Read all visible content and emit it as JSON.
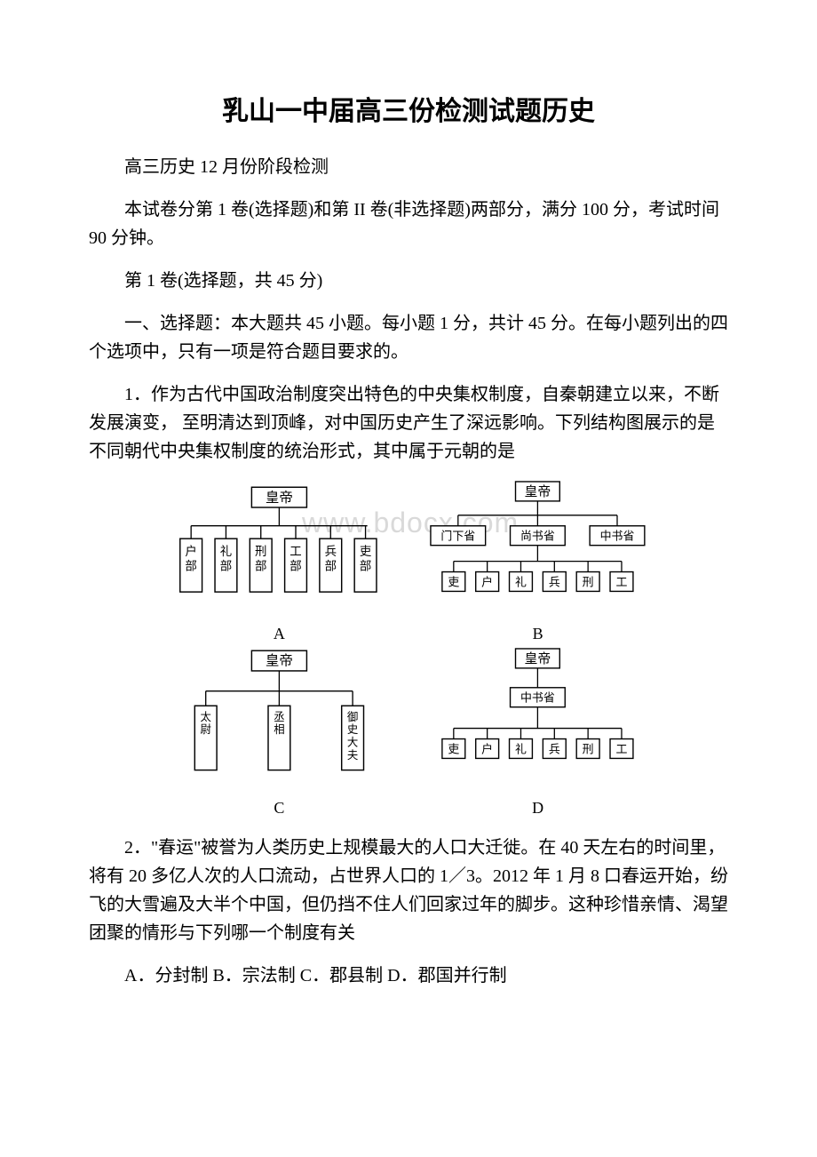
{
  "title": "乳山一中届高三份检测试题历史",
  "p1": "高三历史 12 月份阶段检测",
  "p2": "本试卷分第 1 卷(选择题)和第 II 卷(非选择题)两部分，满分 100 分，考试时间 90 分钟。",
  "p3": "第 1 卷(选择题，共 45 分)",
  "p4": "一、选择题：本大题共 45 小题。每小题 1 分，共计 45 分。在每小题列出的四个选项中，只有一项是符合题目要求的。",
  "q1": "1．作为古代中国政治制度突出特色的中央集权制度，自秦朝建立以来，不断发展演变， 至明清达到顶峰，对中国历史产生了深远影响。下列结构图展示的是不同朝代中央集权制度的统治形式，其中属于元朝的是",
  "watermark": "www.bdocx.com",
  "diagrams": {
    "A": {
      "top": "皇帝",
      "boxes": [
        "户部",
        "礼部",
        "刑部",
        "工部",
        "兵部",
        "吏部"
      ],
      "caption": "A"
    },
    "B": {
      "top": "皇帝",
      "row1": [
        "门下省",
        "尚书省",
        "中书省"
      ],
      "row2": [
        "吏",
        "户",
        "礼",
        "兵",
        "刑",
        "工"
      ],
      "caption": "B"
    },
    "C": {
      "top": "皇帝",
      "boxes": [
        "太尉",
        "丞相",
        "御史大夫"
      ],
      "caption": "C"
    },
    "D": {
      "top": "皇帝",
      "mid": "中书省",
      "row2": [
        "吏",
        "户",
        "礼",
        "兵",
        "刑",
        "工"
      ],
      "caption": "D"
    }
  },
  "q2": "2．\"春运\"被誉为人类历史上规模最大的人口大迁徙。在 40 天左右的时间里，将有 20 多亿人次的人口流动，占世界人口的 1／3。2012 年 1 月 8 口春运开始，纷飞的大雪遍及大半个中国，但仍挡不住人们回家过年的脚步。这种珍惜亲情、渴望团聚的情形与下列哪一个制度有关",
  "q2_options": "A．分封制 B．宗法制 C．郡县制 D．郡国并行制",
  "style": {
    "title_fontsize": 30,
    "body_fontsize": 20,
    "watermark_color": "#d9d9d9",
    "text_color": "#000000",
    "bg_color": "#ffffff",
    "line_width": 1.3
  }
}
